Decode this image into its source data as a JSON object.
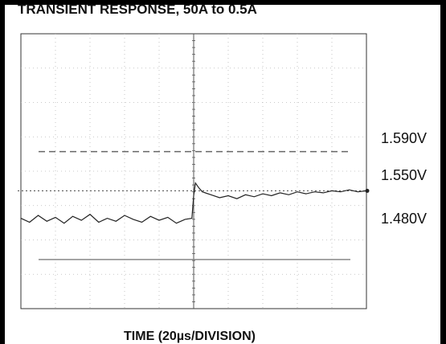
{
  "chart_data": {
    "type": "line",
    "title": "TRANSIENT RESPONSE, 50A to 0.5A",
    "xlabel": "TIME (20µs/DIVISION)",
    "ylabel": "",
    "x_unit": "µs",
    "xlim": [
      0,
      200
    ],
    "ylim": [
      1.43,
      1.71
    ],
    "grid": true,
    "reference_lines": [
      {
        "label": "1.590V",
        "value": 1.59,
        "style": "dashed"
      },
      {
        "label": "1.550V",
        "value": 1.55,
        "style": "tick"
      },
      {
        "label": "1.480V",
        "value": 1.48,
        "style": "solid"
      }
    ],
    "series": [
      {
        "x": [
          0,
          5,
          10,
          15,
          20,
          25,
          30,
          35,
          40,
          45,
          50,
          55,
          60,
          65,
          70,
          75,
          80,
          85,
          90,
          95,
          99,
          100,
          101,
          103,
          105,
          110,
          115,
          120,
          125,
          130,
          135,
          140,
          145,
          150,
          155,
          160,
          165,
          170,
          175,
          180,
          185,
          190,
          195,
          200
        ],
        "values": [
          1.522,
          1.518,
          1.525,
          1.519,
          1.523,
          1.517,
          1.524,
          1.52,
          1.526,
          1.518,
          1.522,
          1.519,
          1.525,
          1.521,
          1.518,
          1.524,
          1.52,
          1.523,
          1.517,
          1.521,
          1.522,
          1.545,
          1.558,
          1.553,
          1.549,
          1.546,
          1.543,
          1.545,
          1.542,
          1.546,
          1.544,
          1.547,
          1.545,
          1.548,
          1.546,
          1.549,
          1.547,
          1.549,
          1.548,
          1.55,
          1.549,
          1.551,
          1.549,
          1.55
        ]
      }
    ]
  }
}
